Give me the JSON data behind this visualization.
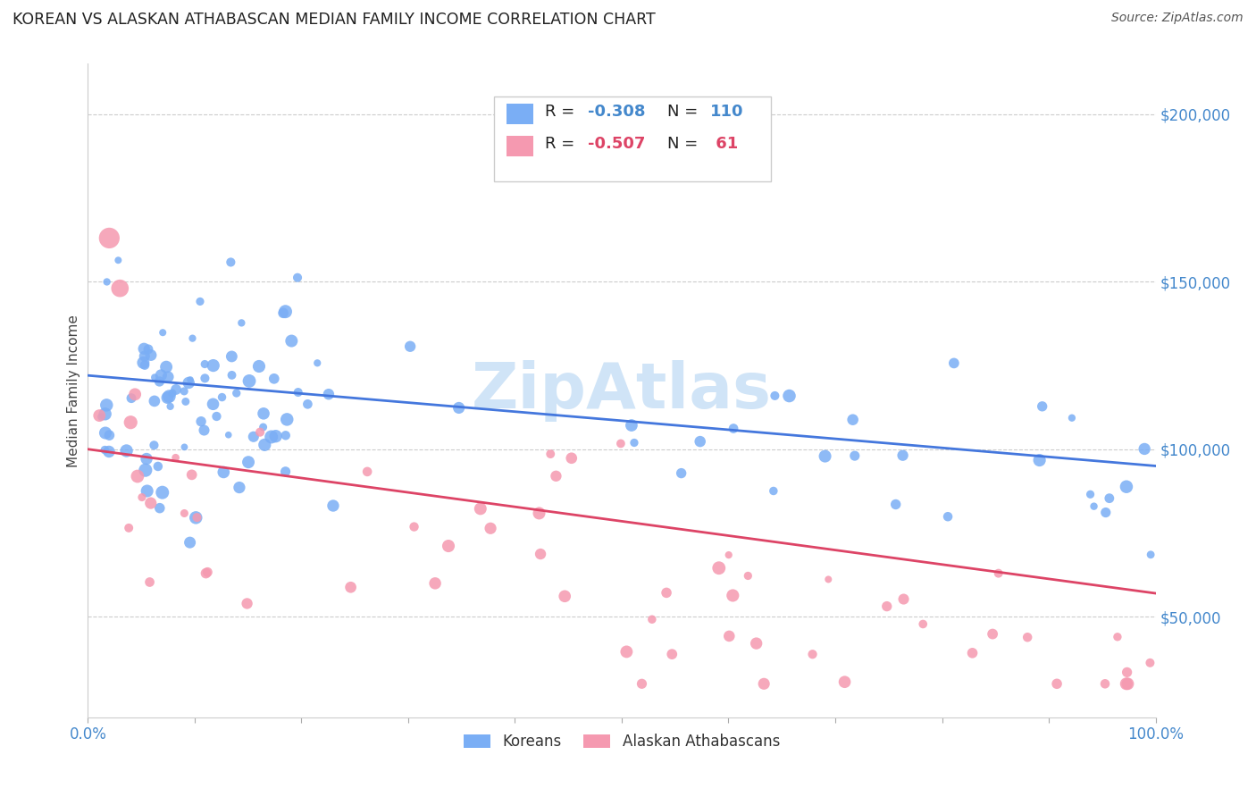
{
  "title": "KOREAN VS ALASKAN ATHABASCAN MEDIAN FAMILY INCOME CORRELATION CHART",
  "source": "Source: ZipAtlas.com",
  "ylabel": "Median Family Income",
  "xlim": [
    0.0,
    1.0
  ],
  "ylim": [
    20000,
    215000
  ],
  "yticks": [
    50000,
    100000,
    150000,
    200000
  ],
  "ytick_labels": [
    "$50,000",
    "$100,000",
    "$150,000",
    "$200,000"
  ],
  "xtick_positions": [
    0.0,
    0.1,
    0.2,
    0.3,
    0.4,
    0.5,
    0.6,
    0.7,
    0.8,
    0.9,
    1.0
  ],
  "xtick_labels": [
    "0.0%",
    "",
    "",
    "",
    "",
    "",
    "",
    "",
    "",
    "",
    "100.0%"
  ],
  "blue_color": "#7aaef5",
  "pink_color": "#f599b0",
  "blue_line_color": "#4477dd",
  "pink_line_color": "#dd4466",
  "tick_color": "#4488cc",
  "watermark": "ZipAtlas",
  "watermark_color": "#d0e4f7",
  "legend_label1": "Koreans",
  "legend_label2": "Alaskan Athabascans",
  "blue_line_y0": 122000,
  "blue_line_y1": 95000,
  "pink_line_y0": 100000,
  "pink_line_y1": 57000
}
